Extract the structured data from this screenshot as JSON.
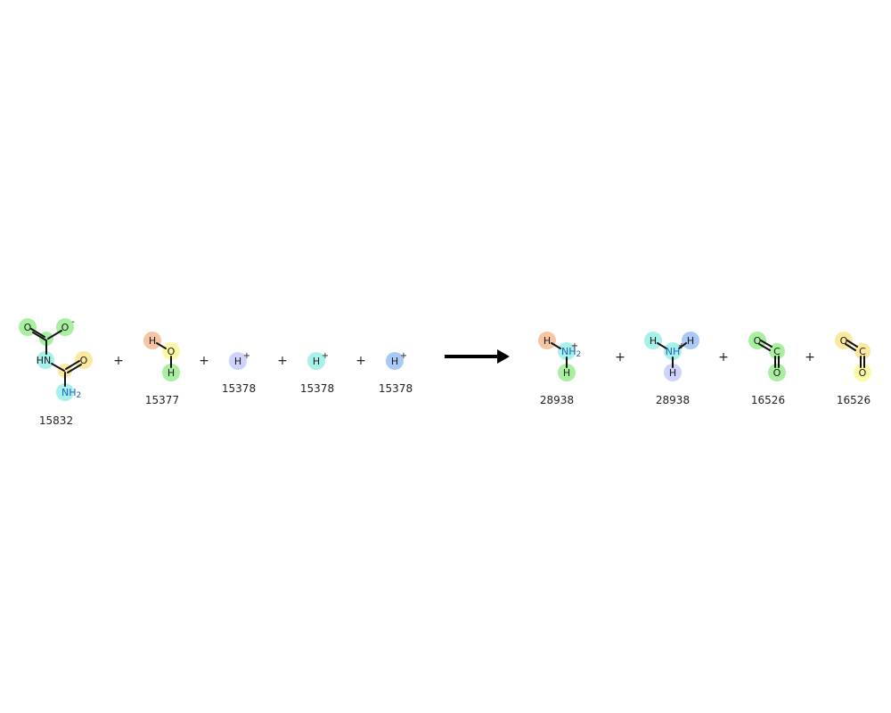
{
  "reaction": {
    "plus_sign": "+",
    "reactants": [
      {
        "id": "15832"
      },
      {
        "id": "15377"
      },
      {
        "id": "15378"
      },
      {
        "id": "15378"
      },
      {
        "id": "15378"
      }
    ],
    "products": [
      {
        "id": "28938"
      },
      {
        "id": "28938"
      },
      {
        "id": "16526"
      },
      {
        "id": "16526"
      }
    ]
  },
  "atoms": {
    "O": "O",
    "HN": "HN",
    "NH": "NH",
    "N": "N",
    "H": "H",
    "C": "C",
    "sub2": "2",
    "minus": "-",
    "plus": "+"
  },
  "colors": {
    "green": "#a8f0a0",
    "yellow": "#fbe9a0",
    "cyan": "#a6f2ea",
    "blue": "#a9c9f6",
    "lavender": "#cfd2fa",
    "salmon": "#f6c6a4",
    "pale_yellow": "#fafaa8"
  }
}
